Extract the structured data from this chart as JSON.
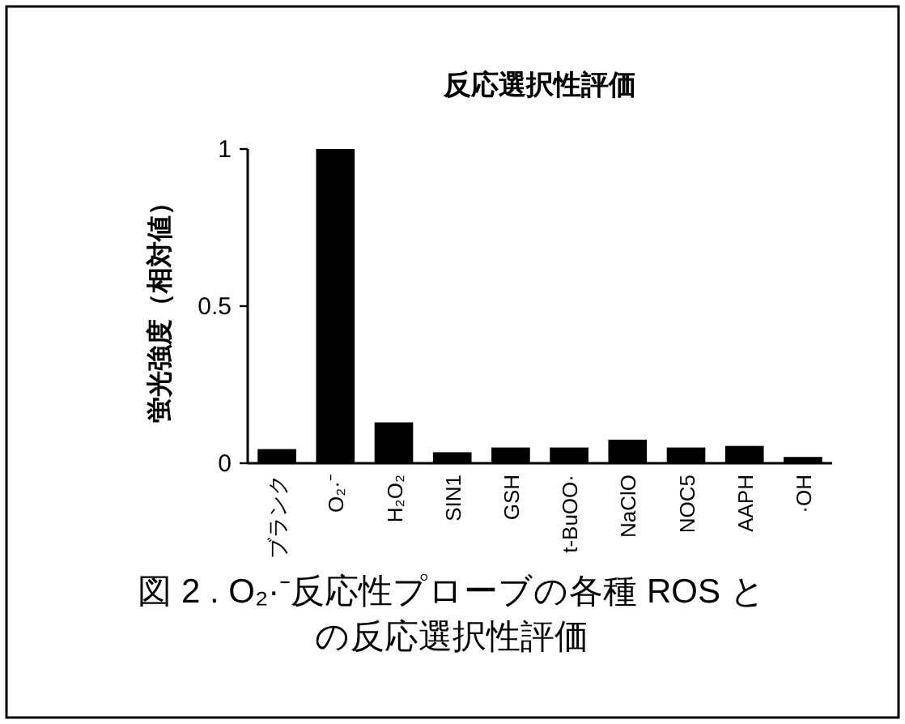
{
  "chart_data": {
    "type": "bar",
    "title": "反応選択性評価",
    "ylabel": "蛍光強度（相対値）",
    "categories": [
      "ブランク",
      "O₂·⁻",
      "H₂O₂",
      "SIN1",
      "GSH",
      "t-BuOO·",
      "NaClO",
      "NOC5",
      "AAPH",
      "·OH"
    ],
    "values": [
      0.045,
      1,
      0.13,
      0.035,
      0.05,
      0.05,
      0.075,
      0.05,
      0.055,
      0.02
    ],
    "color": "#000000",
    "ylim": [
      0,
      1
    ],
    "yticks": [
      0,
      0.5,
      1
    ],
    "grid": false,
    "annotations": [
      "図 2 . O₂·⁻反応性プローブの各種 ROS との反応選択性評価"
    ]
  }
}
